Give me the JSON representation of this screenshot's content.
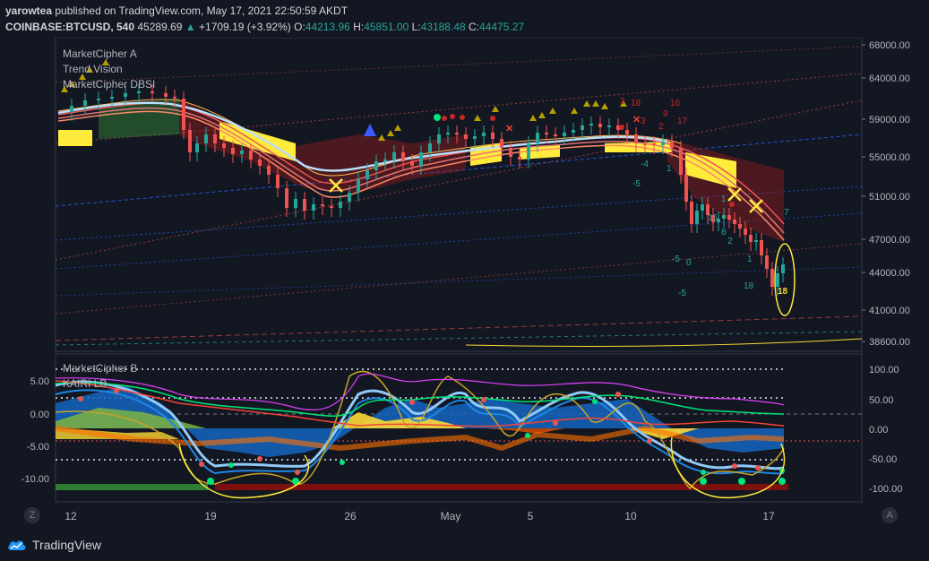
{
  "header": {
    "publisher": "yarowtea",
    "published_text": " published on TradingView.com, May 17, 2021 22:50:59 AKDT",
    "symbol": "COINBASE:BTCUSD, 540",
    "last": "45289.69",
    "change_icon": "triangle-up-icon",
    "change": "+1709.19 (+3.92%)",
    "o_label": "O:",
    "o": "44213.96",
    "h_label": "H:",
    "h": "45851.00",
    "l_label": "L:",
    "l": "43188.48",
    "c_label": "C:",
    "c": "44475.27"
  },
  "indicators_top": [
    "MarketCipher A",
    "Trend Vision",
    "MarketCipher DBSI"
  ],
  "indicators_bottom": [
    "MarketCipher B",
    "KAIRI LB"
  ],
  "price_axis": [
    {
      "label": "68000.00",
      "v": 68000
    },
    {
      "label": "64000.00",
      "v": 64000
    },
    {
      "label": "59000.00",
      "v": 59000
    },
    {
      "label": "55000.00",
      "v": 55000
    },
    {
      "label": "51000.00",
      "v": 51000
    },
    {
      "label": "47000.00",
      "v": 47000
    },
    {
      "label": "44000.00",
      "v": 44000
    },
    {
      "label": "41000.00",
      "v": 41000
    },
    {
      "label": "38600.00",
      "v": 38600
    }
  ],
  "osc_axis_right": [
    "100.00",
    "50.00",
    "0.00",
    "-50.00",
    "-100.00"
  ],
  "osc_axis_left": [
    "5.00",
    "0.00",
    "-5.00",
    "-10.00"
  ],
  "time_axis": [
    "12",
    "19",
    "26",
    "May",
    "5",
    "10",
    "17"
  ],
  "footer": {
    "brand": "TradingView",
    "z_button": "Z",
    "a_button": "A"
  },
  "annotations": {
    "green_counts": [
      "-5",
      "-5",
      "0",
      "-5",
      "-4",
      "1",
      "1",
      "8",
      "2",
      "1",
      "18",
      "16",
      "7"
    ],
    "red_counts": [
      "3",
      "18",
      "16",
      "17",
      "9",
      "3",
      "2"
    ],
    "yellow_count": "18"
  },
  "colors": {
    "bg": "#131722",
    "up": "#26a69a",
    "down": "#ef5350",
    "yellow": "#ffeb3b",
    "wt_blue": "#2962ff",
    "wt_light": "#90caf9"
  }
}
